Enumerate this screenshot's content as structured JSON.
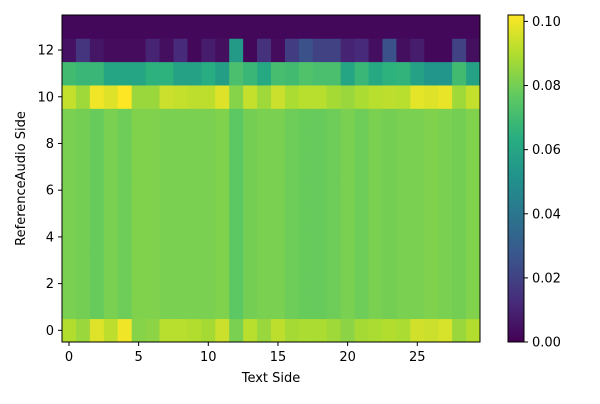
{
  "chart_data": {
    "type": "heatmap",
    "title": "",
    "xlabel": "Text Side",
    "ylabel": "ReferenceAudio Side",
    "xlim": [
      -0.5,
      29.5
    ],
    "ylim": [
      -0.5,
      13.5
    ],
    "x_ticks": [
      0,
      5,
      10,
      15,
      20,
      25
    ],
    "y_ticks": [
      0,
      2,
      4,
      6,
      8,
      10,
      12
    ],
    "colorbar": {
      "colormap": "viridis",
      "range": [
        0.0,
        0.102
      ],
      "ticks": [
        0.0,
        0.02,
        0.04,
        0.06,
        0.08,
        0.1
      ],
      "tick_labels": [
        "0.00",
        "0.02",
        "0.04",
        "0.06",
        "0.08",
        "0.10"
      ]
    },
    "grid": false,
    "column_base": [
      0.081,
      0.08,
      0.078,
      0.081,
      0.079,
      0.082,
      0.082,
      0.081,
      0.081,
      0.081,
      0.081,
      0.082,
      0.076,
      0.08,
      0.081,
      0.081,
      0.079,
      0.078,
      0.078,
      0.079,
      0.081,
      0.079,
      0.081,
      0.08,
      0.081,
      0.081,
      0.082,
      0.081,
      0.08,
      0.082
    ],
    "rows": {
      "0": [
        0.09,
        0.086,
        0.097,
        0.092,
        0.1,
        0.083,
        0.084,
        0.091,
        0.091,
        0.09,
        0.088,
        0.094,
        0.081,
        0.091,
        0.086,
        0.092,
        0.088,
        0.089,
        0.089,
        0.087,
        0.084,
        0.088,
        0.089,
        0.09,
        0.089,
        0.095,
        0.094,
        0.096,
        0.086,
        0.09
      ],
      "10": [
        0.093,
        0.087,
        0.1,
        0.097,
        0.102,
        0.086,
        0.086,
        0.094,
        0.093,
        0.092,
        0.092,
        0.097,
        0.083,
        0.093,
        0.087,
        0.094,
        0.089,
        0.091,
        0.091,
        0.088,
        0.086,
        0.089,
        0.091,
        0.092,
        0.091,
        0.098,
        0.097,
        0.099,
        0.087,
        0.093
      ],
      "11": [
        0.07,
        0.068,
        0.068,
        0.06,
        0.06,
        0.06,
        0.065,
        0.065,
        0.058,
        0.058,
        0.063,
        0.057,
        0.072,
        0.068,
        0.061,
        0.071,
        0.07,
        0.073,
        0.072,
        0.072,
        0.06,
        0.068,
        0.061,
        0.065,
        0.066,
        0.058,
        0.053,
        0.053,
        0.07,
        0.058
      ],
      "12": [
        0.005,
        0.015,
        0.006,
        0.003,
        0.003,
        0.003,
        0.01,
        0.004,
        0.012,
        0.002,
        0.008,
        0.004,
        0.055,
        0.002,
        0.014,
        0.003,
        0.018,
        0.025,
        0.02,
        0.02,
        0.01,
        0.012,
        0.004,
        0.025,
        0.004,
        0.008,
        0.002,
        0.002,
        0.02,
        0.004
      ],
      "13": [
        0.002,
        0.002,
        0.002,
        0.002,
        0.002,
        0.002,
        0.002,
        0.002,
        0.002,
        0.002,
        0.002,
        0.002,
        0.002,
        0.002,
        0.002,
        0.002,
        0.002,
        0.002,
        0.002,
        0.002,
        0.002,
        0.002,
        0.002,
        0.002,
        0.002,
        0.002,
        0.002,
        0.002,
        0.002,
        0.002
      ]
    }
  }
}
